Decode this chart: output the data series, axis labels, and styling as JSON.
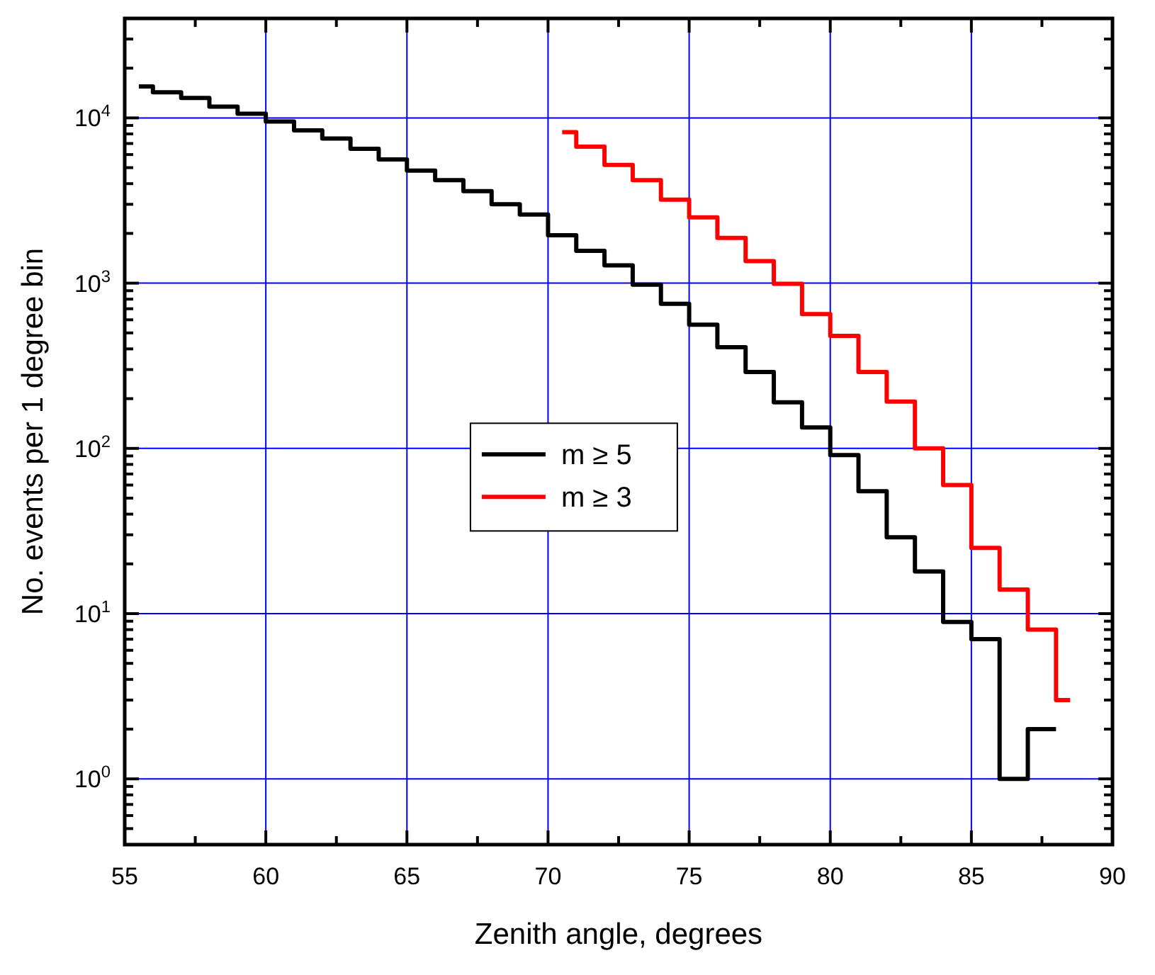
{
  "chart_data": {
    "type": "step",
    "xlabel": "Zenith angle, degrees",
    "ylabel": "No. events per 1 degree bin",
    "log": "y",
    "grid": true,
    "legend": "center",
    "xlim": [
      55,
      90
    ],
    "ylim": [
      0.4,
      40000
    ],
    "xticks": [
      55,
      {
        "value": 57.5,
        "label": null
      },
      60,
      {
        "value": 62.5,
        "label": null
      },
      65,
      {
        "value": 67.5,
        "label": null
      },
      70,
      {
        "value": 72.5,
        "label": null
      },
      75,
      {
        "value": 77.5,
        "label": null
      },
      80,
      {
        "value": 82.5,
        "label": null
      },
      85,
      {
        "value": 87.5,
        "label": null
      },
      90
    ],
    "yticks": [
      {
        "value": 0.4,
        "label": null
      },
      {
        "value": 0.5,
        "label": null
      },
      {
        "value": 0.6,
        "label": null
      },
      {
        "value": 0.7,
        "label": null
      },
      {
        "value": 0.8,
        "label": null
      },
      {
        "value": 0.9,
        "label": null
      },
      {
        "value": 1,
        "label": "10$^{0}$"
      },
      {
        "value": 2,
        "label": null
      },
      {
        "value": 3,
        "label": null
      },
      {
        "value": 4,
        "label": null
      },
      {
        "value": 5,
        "label": null
      },
      {
        "value": 6,
        "label": null
      },
      {
        "value": 7,
        "label": null
      },
      {
        "value": 8,
        "label": null
      },
      {
        "value": 9,
        "label": null
      },
      {
        "value": 10,
        "label": "10$^{1}$"
      },
      {
        "value": 20,
        "label": null
      },
      {
        "value": 30,
        "label": null
      },
      {
        "value": 40,
        "label": null
      },
      {
        "value": 50,
        "label": null
      },
      {
        "value": 60,
        "label": null
      },
      {
        "value": 70,
        "label": null
      },
      {
        "value": 80,
        "label": null
      },
      {
        "value": 90,
        "label": null
      },
      {
        "value": 100,
        "label": "10$^{2}$"
      },
      {
        "value": 200,
        "label": null
      },
      {
        "value": 300,
        "label": null
      },
      {
        "value": 400,
        "label": null
      },
      {
        "value": 500,
        "label": null
      },
      {
        "value": 600,
        "label": null
      },
      {
        "value": 700,
        "label": null
      },
      {
        "value": 800,
        "label": null
      },
      {
        "value": 900,
        "label": null
      },
      {
        "value": 1000,
        "label": "10$^{3}$"
      },
      {
        "value": 2000,
        "label": null
      },
      {
        "value": 3000,
        "label": null
      },
      {
        "value": 4000,
        "label": null
      },
      {
        "value": 5000,
        "label": null
      },
      {
        "value": 6000,
        "label": null
      },
      {
        "value": 7000,
        "label": null
      },
      {
        "value": 8000,
        "label": null
      },
      {
        "value": 9000,
        "label": null
      },
      {
        "value": 10000,
        "label": "10$^{4}$"
      },
      {
        "value": 20000,
        "label": null
      },
      {
        "value": 30000,
        "label": null
      },
      {
        "value": 40000,
        "label": null
      }
    ],
    "series": [
      {
        "name": "m ≥ 5",
        "color": "#000000",
        "x": [
          55.5,
          56,
          57,
          58,
          59,
          60,
          61,
          62,
          63,
          64,
          65,
          66,
          67,
          68,
          69,
          70,
          71,
          72,
          73,
          74,
          75,
          76,
          77,
          78,
          79,
          80,
          81,
          82,
          83,
          84,
          85,
          86,
          87,
          88
        ],
        "values": [
          15500,
          14300,
          13200,
          11700,
          10600,
          9500,
          8400,
          7500,
          6500,
          5600,
          4800,
          4200,
          3600,
          3000,
          2600,
          1950,
          1570,
          1280,
          980,
          750,
          560,
          410,
          290,
          190,
          134,
          91,
          55,
          29,
          18,
          8.9,
          7,
          1,
          2,
          2
        ]
      },
      {
        "name": "m ≥ 3",
        "color": "#ff0000",
        "x": [
          70.5,
          71,
          72,
          73,
          74,
          75,
          76,
          77,
          78,
          79,
          80,
          81,
          82,
          83,
          84,
          85,
          86,
          87,
          88,
          88.5
        ],
        "values": [
          8200,
          6700,
          5200,
          4200,
          3200,
          2500,
          1880,
          1360,
          990,
          650,
          480,
          290,
          192,
          100,
          60,
          25,
          14,
          8,
          3,
          3
        ]
      }
    ]
  }
}
